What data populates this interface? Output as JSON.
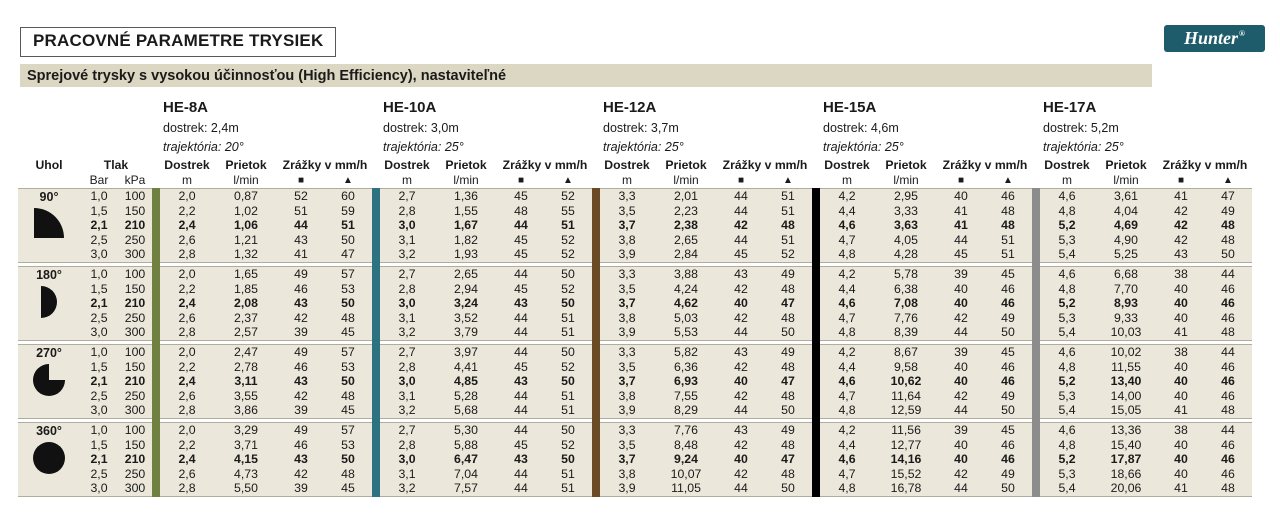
{
  "page": {
    "title": "PRACOVNÉ PARAMETRE TRYSIEK",
    "subtitle": "Sprejové trysky s vysokou účinnosťou (High Efficiency), nastaviteľné",
    "brand": {
      "name": "Hunter",
      "reg": "®",
      "bg": "#1e5b6b"
    }
  },
  "columns": {
    "uhol": "Uhol",
    "tlak": "Tlak",
    "bar": "Bar",
    "kpa": "kPa",
    "dostrek": "Dostrek",
    "dostrek_unit": "m",
    "prietok": "Prietok",
    "prietok_unit": "l/min",
    "zrazky": "Zrážky v mm/h",
    "square": "■",
    "triangle": "▲"
  },
  "nozzles": [
    {
      "name": "HE-8A",
      "dostrek": "dostrek: 2,4m",
      "trajektoria": "trajektória: 20°",
      "bar_color": "#6f8040"
    },
    {
      "name": "HE-10A",
      "dostrek": "dostrek: 3,0m",
      "trajektoria": "trajektória: 25°",
      "bar_color": "#2d7281"
    },
    {
      "name": "HE-12A",
      "dostrek": "dostrek: 3,7m",
      "trajektoria": "trajektória: 25°",
      "bar_color": "#6b4a26"
    },
    {
      "name": "HE-15A",
      "dostrek": "dostrek: 4,6m",
      "trajektoria": "trajektória: 25°",
      "bar_color": "#000000"
    },
    {
      "name": "HE-17A",
      "dostrek": "dostrek: 5,2m",
      "trajektoria": "trajektória: 25°",
      "bar_color": "#8c8c8c"
    }
  ],
  "blocks": [
    {
      "angle": "90°",
      "icon": "sector-90",
      "rows": [
        {
          "bar": "1,0",
          "kpa": "100",
          "bold": false,
          "v": [
            "2,0",
            "0,87",
            "52",
            "60",
            "2,7",
            "1,36",
            "45",
            "52",
            "3,3",
            "2,01",
            "44",
            "51",
            "4,2",
            "2,95",
            "40",
            "46",
            "4,6",
            "3,61",
            "41",
            "47"
          ]
        },
        {
          "bar": "1,5",
          "kpa": "150",
          "bold": false,
          "v": [
            "2,2",
            "1,02",
            "51",
            "59",
            "2,8",
            "1,55",
            "48",
            "55",
            "3,5",
            "2,23",
            "44",
            "51",
            "4,4",
            "3,33",
            "41",
            "48",
            "4,8",
            "4,04",
            "42",
            "49"
          ]
        },
        {
          "bar": "2,1",
          "kpa": "210",
          "bold": true,
          "v": [
            "2,4",
            "1,06",
            "44",
            "51",
            "3,0",
            "1,67",
            "44",
            "51",
            "3,7",
            "2,38",
            "42",
            "48",
            "4,6",
            "3,63",
            "41",
            "48",
            "5,2",
            "4,69",
            "42",
            "48"
          ]
        },
        {
          "bar": "2,5",
          "kpa": "250",
          "bold": false,
          "v": [
            "2,6",
            "1,21",
            "43",
            "50",
            "3,1",
            "1,82",
            "45",
            "52",
            "3,8",
            "2,65",
            "44",
            "51",
            "4,7",
            "4,05",
            "44",
            "51",
            "5,3",
            "4,90",
            "42",
            "48"
          ]
        },
        {
          "bar": "3,0",
          "kpa": "300",
          "bold": false,
          "v": [
            "2,8",
            "1,32",
            "41",
            "47",
            "3,2",
            "1,93",
            "45",
            "52",
            "3,9",
            "2,84",
            "45",
            "52",
            "4,8",
            "4,28",
            "45",
            "51",
            "5,4",
            "5,25",
            "43",
            "50"
          ]
        }
      ]
    },
    {
      "angle": "180°",
      "icon": "sector-180",
      "rows": [
        {
          "bar": "1,0",
          "kpa": "100",
          "bold": false,
          "v": [
            "2,0",
            "1,65",
            "49",
            "57",
            "2,7",
            "2,65",
            "44",
            "50",
            "3,3",
            "3,88",
            "43",
            "49",
            "4,2",
            "5,78",
            "39",
            "45",
            "4,6",
            "6,68",
            "38",
            "44"
          ]
        },
        {
          "bar": "1,5",
          "kpa": "150",
          "bold": false,
          "v": [
            "2,2",
            "1,85",
            "46",
            "53",
            "2,8",
            "2,94",
            "45",
            "52",
            "3,5",
            "4,24",
            "42",
            "48",
            "4,4",
            "6,38",
            "40",
            "46",
            "4,8",
            "7,70",
            "40",
            "46"
          ]
        },
        {
          "bar": "2,1",
          "kpa": "210",
          "bold": true,
          "v": [
            "2,4",
            "2,08",
            "43",
            "50",
            "3,0",
            "3,24",
            "43",
            "50",
            "3,7",
            "4,62",
            "40",
            "47",
            "4,6",
            "7,08",
            "40",
            "46",
            "5,2",
            "8,93",
            "40",
            "46"
          ]
        },
        {
          "bar": "2,5",
          "kpa": "250",
          "bold": false,
          "v": [
            "2,6",
            "2,37",
            "42",
            "48",
            "3,1",
            "3,52",
            "44",
            "51",
            "3,8",
            "5,03",
            "42",
            "48",
            "4,7",
            "7,76",
            "42",
            "49",
            "5,3",
            "9,33",
            "40",
            "46"
          ]
        },
        {
          "bar": "3,0",
          "kpa": "300",
          "bold": false,
          "v": [
            "2,8",
            "2,57",
            "39",
            "45",
            "3,2",
            "3,79",
            "44",
            "51",
            "3,9",
            "5,53",
            "44",
            "50",
            "4,8",
            "8,39",
            "44",
            "50",
            "5,4",
            "10,03",
            "41",
            "48"
          ]
        }
      ]
    },
    {
      "angle": "270°",
      "icon": "sector-270",
      "rows": [
        {
          "bar": "1,0",
          "kpa": "100",
          "bold": false,
          "v": [
            "2,0",
            "2,47",
            "49",
            "57",
            "2,7",
            "3,97",
            "44",
            "50",
            "3,3",
            "5,82",
            "43",
            "49",
            "4,2",
            "8,67",
            "39",
            "45",
            "4,6",
            "10,02",
            "38",
            "44"
          ]
        },
        {
          "bar": "1,5",
          "kpa": "150",
          "bold": false,
          "v": [
            "2,2",
            "2,78",
            "46",
            "53",
            "2,8",
            "4,41",
            "45",
            "52",
            "3,5",
            "6,36",
            "42",
            "48",
            "4,4",
            "9,58",
            "40",
            "46",
            "4,8",
            "11,55",
            "40",
            "46"
          ]
        },
        {
          "bar": "2,1",
          "kpa": "210",
          "bold": true,
          "v": [
            "2,4",
            "3,11",
            "43",
            "50",
            "3,0",
            "4,85",
            "43",
            "50",
            "3,7",
            "6,93",
            "40",
            "47",
            "4,6",
            "10,62",
            "40",
            "46",
            "5,2",
            "13,40",
            "40",
            "46"
          ]
        },
        {
          "bar": "2,5",
          "kpa": "250",
          "bold": false,
          "v": [
            "2,6",
            "3,55",
            "42",
            "48",
            "3,1",
            "5,28",
            "44",
            "51",
            "3,8",
            "7,55",
            "42",
            "48",
            "4,7",
            "11,64",
            "42",
            "49",
            "5,3",
            "14,00",
            "40",
            "46"
          ]
        },
        {
          "bar": "3,0",
          "kpa": "300",
          "bold": false,
          "v": [
            "2,8",
            "3,86",
            "39",
            "45",
            "3,2",
            "5,68",
            "44",
            "51",
            "3,9",
            "8,29",
            "44",
            "50",
            "4,8",
            "12,59",
            "44",
            "50",
            "5,4",
            "15,05",
            "41",
            "48"
          ]
        }
      ]
    },
    {
      "angle": "360°",
      "icon": "sector-360",
      "rows": [
        {
          "bar": "1,0",
          "kpa": "100",
          "bold": false,
          "v": [
            "2,0",
            "3,29",
            "49",
            "57",
            "2,7",
            "5,30",
            "44",
            "50",
            "3,3",
            "7,76",
            "43",
            "49",
            "4,2",
            "11,56",
            "39",
            "45",
            "4,6",
            "13,36",
            "38",
            "44"
          ]
        },
        {
          "bar": "1,5",
          "kpa": "150",
          "bold": false,
          "v": [
            "2,2",
            "3,71",
            "46",
            "53",
            "2,8",
            "5,88",
            "45",
            "52",
            "3,5",
            "8,48",
            "42",
            "48",
            "4,4",
            "12,77",
            "40",
            "46",
            "4,8",
            "15,40",
            "40",
            "46"
          ]
        },
        {
          "bar": "2,1",
          "kpa": "210",
          "bold": true,
          "v": [
            "2,4",
            "4,15",
            "43",
            "50",
            "3,0",
            "6,47",
            "43",
            "50",
            "3,7",
            "9,24",
            "40",
            "47",
            "4,6",
            "14,16",
            "40",
            "46",
            "5,2",
            "17,87",
            "40",
            "46"
          ]
        },
        {
          "bar": "2,5",
          "kpa": "250",
          "bold": false,
          "v": [
            "2,6",
            "4,73",
            "42",
            "48",
            "3,1",
            "7,04",
            "44",
            "51",
            "3,8",
            "10,07",
            "42",
            "48",
            "4,7",
            "15,52",
            "42",
            "49",
            "5,3",
            "18,66",
            "40",
            "46"
          ]
        },
        {
          "bar": "3,0",
          "kpa": "300",
          "bold": false,
          "v": [
            "2,8",
            "5,50",
            "39",
            "45",
            "3,2",
            "7,57",
            "44",
            "51",
            "3,9",
            "11,05",
            "44",
            "50",
            "4,8",
            "16,78",
            "44",
            "50",
            "5,4",
            "20,06",
            "41",
            "48"
          ]
        }
      ]
    }
  ]
}
